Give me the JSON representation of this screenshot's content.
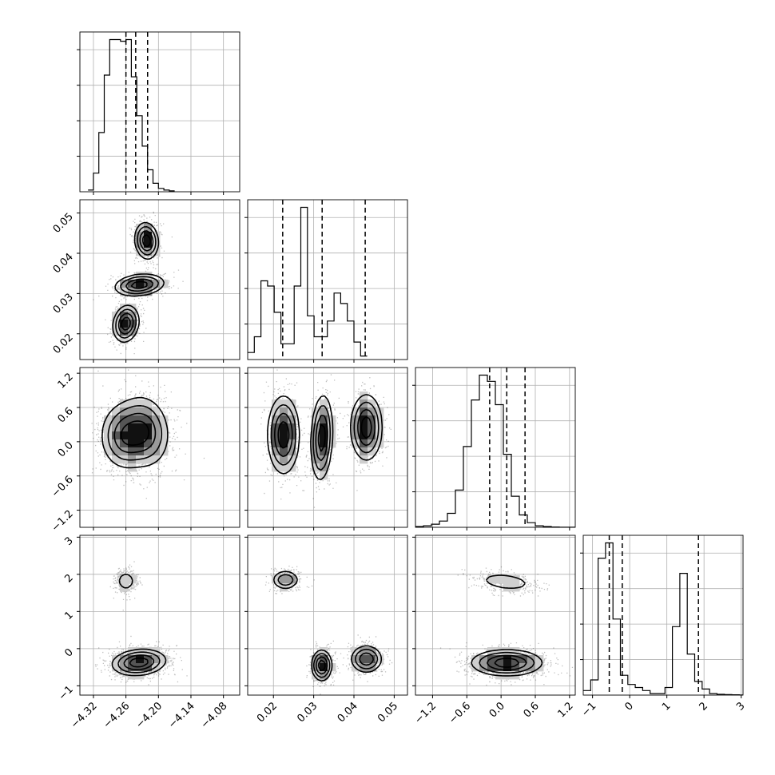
{
  "chart_data": {
    "type": "corner",
    "title": "",
    "grid": true,
    "parameters": [
      {
        "index": 0,
        "range": [
          -4.345,
          -4.05
        ],
        "ticks": [
          -4.32,
          -4.26,
          -4.2,
          -4.14,
          -4.08
        ],
        "tick_labels": [
          "−4.32",
          "−4.26",
          "−4.20",
          "−4.14",
          "−4.08"
        ],
        "quantiles": [
          -4.26,
          -4.242,
          -4.22
        ],
        "histogram": {
          "edges_start": -4.33,
          "bin_width": 0.01,
          "counts": [
            0.01,
            0.11,
            0.35,
            0.69,
            0.9,
            0.9,
            0.89,
            0.9,
            0.68,
            0.45,
            0.27,
            0.13,
            0.05,
            0.02,
            0.01,
            0.005
          ]
        }
      },
      {
        "index": 1,
        "range": [
          0.0136,
          0.0533
        ],
        "ticks": [
          0.02,
          0.03,
          0.04,
          0.05
        ],
        "tick_labels": [
          "0.02",
          "0.03",
          "0.04",
          "0.05"
        ],
        "quantiles": [
          0.0223,
          0.0321,
          0.0428
        ],
        "histogram": {
          "edges_start": 0.0136,
          "bin_width": 0.00165,
          "counts": [
            0.04,
            0.13,
            0.45,
            0.42,
            0.27,
            0.09,
            0.09,
            0.42,
            0.87,
            0.25,
            0.13,
            0.13,
            0.22,
            0.38,
            0.32,
            0.22,
            0.1,
            0.02
          ]
        }
      },
      {
        "index": 2,
        "range": [
          -1.5,
          1.3
        ],
        "ticks": [
          -1.2,
          -0.6,
          0.0,
          0.6,
          1.2
        ],
        "tick_labels": [
          "−1.2",
          "−0.6",
          "0.0",
          "0.6",
          "1.2"
        ],
        "quantiles": [
          -0.2,
          0.1,
          0.42
        ],
        "histogram": {
          "edges_start": -1.5,
          "bin_width": 0.14,
          "counts": [
            0.005,
            0.01,
            0.02,
            0.04,
            0.09,
            0.24,
            0.52,
            0.82,
            0.98,
            0.94,
            0.79,
            0.47,
            0.2,
            0.08,
            0.03,
            0.01,
            0.005,
            0.002,
            0.001,
            0.001
          ]
        }
      },
      {
        "index": 3,
        "range": [
          -1.25,
          3.05
        ],
        "ticks": [
          -1,
          0,
          1,
          2,
          3
        ],
        "tick_labels": [
          "−1",
          "0",
          "1",
          "2",
          "3"
        ],
        "quantiles": [
          -0.55,
          -0.2,
          1.85
        ],
        "histogram": {
          "edges_start": -1.25,
          "bin_width": 0.2,
          "counts": [
            0.03,
            0.1,
            0.9,
            1.0,
            0.5,
            0.13,
            0.07,
            0.05,
            0.03,
            0.01,
            0.01,
            0.05,
            0.45,
            0.8,
            0.27,
            0.09,
            0.04,
            0.01,
            0.005,
            0.003,
            0.002,
            0.001
          ]
        }
      }
    ],
    "pairs": [
      {
        "x": 0,
        "y": 1,
        "modes": [
          {
            "cx": -4.26,
            "cy": 0.0225,
            "sx": 0.0115,
            "sy": 0.0022,
            "rho": 0.15,
            "w": 0.34
          },
          {
            "cx": -4.235,
            "cy": 0.0321,
            "sx": 0.022,
            "sy": 0.0013,
            "rho": 0.2,
            "w": 0.33
          },
          {
            "cx": -4.222,
            "cy": 0.0431,
            "sx": 0.0105,
            "sy": 0.0022,
            "rho": -0.1,
            "w": 0.33
          }
        ]
      },
      {
        "x": 0,
        "y": 2,
        "modes": [
          {
            "cx": -4.262,
            "cy": 0.1,
            "sx": 0.022,
            "sy": 0.28,
            "rho": 0.0,
            "w": 0.5
          },
          {
            "cx": -4.225,
            "cy": 0.18,
            "sx": 0.022,
            "sy": 0.3,
            "rho": -0.1,
            "w": 0.5
          }
        ]
      },
      {
        "x": 0,
        "y": 3,
        "modes": [
          {
            "cx": -4.26,
            "cy": 1.82,
            "sx": 0.009,
            "sy": 0.14,
            "rho": 0.0,
            "w": 0.22
          },
          {
            "cx": -4.236,
            "cy": -0.37,
            "sx": 0.024,
            "sy": 0.17,
            "rho": 0.15,
            "w": 0.78
          }
        ]
      },
      {
        "x": 1,
        "y": 2,
        "modes": [
          {
            "cx": 0.0225,
            "cy": 0.12,
            "sx": 0.0019,
            "sy": 0.33,
            "rho": 0.0,
            "w": 0.34
          },
          {
            "cx": 0.032,
            "cy": 0.07,
            "sx": 0.0013,
            "sy": 0.36,
            "rho": 0.15,
            "w": 0.33
          },
          {
            "cx": 0.0431,
            "cy": 0.25,
            "sx": 0.0019,
            "sy": 0.28,
            "rho": 0.0,
            "w": 0.33
          }
        ]
      },
      {
        "x": 1,
        "y": 3,
        "modes": [
          {
            "cx": 0.023,
            "cy": 1.85,
            "sx": 0.0017,
            "sy": 0.13,
            "rho": 0.0,
            "w": 0.22
          },
          {
            "cx": 0.032,
            "cy": -0.45,
            "sx": 0.0012,
            "sy": 0.2,
            "rho": 0.0,
            "w": 0.44
          },
          {
            "cx": 0.0431,
            "cy": -0.28,
            "sx": 0.0019,
            "sy": 0.18,
            "rho": 0.0,
            "w": 0.34
          }
        ]
      },
      {
        "x": 2,
        "y": 3,
        "modes": [
          {
            "cx": 0.08,
            "cy": 1.8,
            "sx": 0.26,
            "sy": 0.13,
            "rho": -0.3,
            "w": 0.22
          },
          {
            "cx": 0.1,
            "cy": -0.38,
            "sx": 0.3,
            "sy": 0.17,
            "rho": 0.0,
            "w": 0.78
          }
        ]
      }
    ],
    "contour_levels": [
      0.12,
      0.28,
      0.52,
      0.78
    ]
  }
}
